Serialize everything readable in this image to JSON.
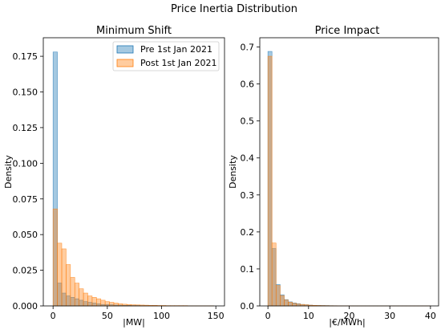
{
  "figure": {
    "suptitle": "Price Inertia Distribution"
  },
  "colors": {
    "pre": "#1f77b4",
    "post": "#ff7f0e"
  },
  "chart_data": [
    {
      "type": "bar",
      "title": "Minimum Shift",
      "xlabel": "|MW|",
      "ylabel": "Density",
      "xlim": [
        -9,
        158
      ],
      "ylim": [
        0,
        0.188
      ],
      "xticks": [
        0,
        50,
        100,
        150
      ],
      "yticks": [
        0.0,
        0.025,
        0.05,
        0.075,
        0.1,
        0.125,
        0.15,
        0.175
      ],
      "ytick_labels": [
        "0.000",
        "0.025",
        "0.050",
        "0.075",
        "0.100",
        "0.125",
        "0.150",
        "0.175"
      ],
      "bin_edges": [
        0,
        4,
        8,
        12,
        16,
        20,
        24,
        28,
        32,
        36,
        40,
        44,
        48,
        52,
        56,
        60,
        64,
        68,
        72,
        76,
        80,
        84,
        88,
        92,
        96,
        100,
        104,
        108,
        112,
        116,
        120,
        124,
        128,
        132,
        136,
        140,
        144,
        148
      ],
      "legend": {
        "position": "top-right",
        "entries": [
          "Pre 1st Jan 2021",
          "Post 1st Jan 2021"
        ]
      },
      "series": [
        {
          "name": "Pre 1st Jan 2021",
          "values": [
            0.178,
            0.016,
            0.009,
            0.007,
            0.006,
            0.005,
            0.004,
            0.003,
            0.0025,
            0.002,
            0.0015,
            0.001,
            0.0009,
            0.0008,
            0.0006,
            0.0005,
            0.0004,
            0.0004,
            0.0003,
            0.0003,
            0.0002,
            0.0002,
            0.0002,
            0.0002,
            0.0001,
            0.0001,
            0.0001,
            0.0001,
            0.0001,
            0.0001,
            0.0001,
            0.0001,
            0.0001,
            0.0001,
            0.0001,
            0.0001,
            0.0001
          ]
        },
        {
          "name": "Post 1st Jan 2021",
          "values": [
            0.068,
            0.044,
            0.04,
            0.029,
            0.02,
            0.016,
            0.012,
            0.009,
            0.007,
            0.006,
            0.005,
            0.004,
            0.003,
            0.0025,
            0.002,
            0.0015,
            0.0012,
            0.001,
            0.0008,
            0.0007,
            0.0006,
            0.0005,
            0.0004,
            0.0004,
            0.0003,
            0.0003,
            0.0002,
            0.0002,
            0.0002,
            0.0002,
            0.0002,
            0.0001,
            0.0001,
            0.0001,
            0.0001,
            0.0001,
            0.0001
          ]
        }
      ]
    },
    {
      "type": "bar",
      "title": "Price Impact",
      "xlabel": "|€/MWh|",
      "ylabel": "Density",
      "xlim": [
        -2,
        42
      ],
      "ylim": [
        0,
        0.725
      ],
      "xticks": [
        0,
        10,
        20,
        30,
        40
      ],
      "yticks": [
        0.0,
        0.1,
        0.2,
        0.3,
        0.4,
        0.5,
        0.6,
        0.7
      ],
      "ytick_labels": [
        "0.0",
        "0.1",
        "0.2",
        "0.3",
        "0.4",
        "0.5",
        "0.6",
        "0.7"
      ],
      "bin_edges": [
        0,
        1,
        2,
        3,
        4,
        5,
        6,
        7,
        8,
        9,
        10,
        11,
        12,
        13,
        14,
        15,
        16,
        17,
        18,
        19,
        20,
        21,
        22,
        23,
        24,
        25,
        26,
        27,
        28,
        29,
        30,
        31,
        32,
        33,
        34,
        35,
        36,
        37,
        38,
        39,
        40
      ],
      "series": [
        {
          "name": "Pre 1st Jan 2021",
          "values": [
            0.688,
            0.155,
            0.058,
            0.03,
            0.017,
            0.011,
            0.008,
            0.006,
            0.004,
            0.003,
            0.002,
            0.0015,
            0.0012,
            0.001,
            0.0008,
            0.0006,
            0.0005,
            0.0004,
            0.0003,
            0.0003,
            0.0003,
            0.0002,
            0.0002,
            0.0002,
            0.0002,
            0.0001,
            0.0002,
            0.0001,
            0.0001,
            0.0002,
            0.0001,
            0.0001,
            0.0001,
            0.0002,
            0.0001,
            0.0001,
            0.0001,
            0.0001,
            0.0001,
            0.0001
          ]
        },
        {
          "name": "Post 1st Jan 2021",
          "values": [
            0.675,
            0.17,
            0.055,
            0.028,
            0.016,
            0.01,
            0.007,
            0.005,
            0.004,
            0.003,
            0.002,
            0.0015,
            0.0012,
            0.001,
            0.0008,
            0.0006,
            0.0005,
            0.0004,
            0.0003,
            0.0003,
            0.0003,
            0.0002,
            0.0002,
            0.0002,
            0.0001,
            0.0001,
            0.0001,
            0.0001,
            0.0001,
            0.0001,
            0.0001,
            0.0001,
            0.0001,
            0.0001,
            0.0001,
            0.0001,
            0.0001,
            0.0001,
            0.0001,
            0.0001
          ]
        }
      ]
    }
  ]
}
